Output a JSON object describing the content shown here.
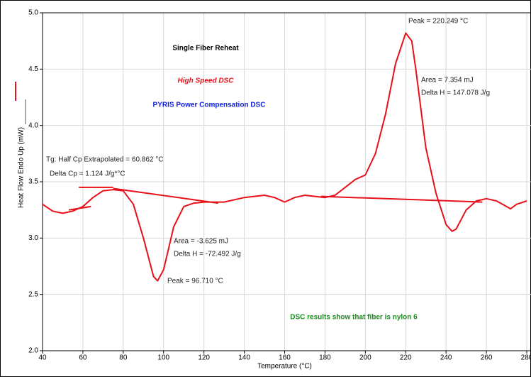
{
  "chart_data": {
    "type": "line",
    "title": "Single Fiber Reheat",
    "x_label": "Temperature (°C)",
    "y_label": "Heat Flow Endo Up (mW)",
    "xlim": [
      40,
      280
    ],
    "ylim": [
      2.0,
      5.0
    ],
    "xticks": [
      40,
      60,
      80,
      100,
      120,
      140,
      160,
      180,
      200,
      220,
      240,
      260,
      280
    ],
    "yticks": [
      {
        "value": 2.0,
        "label": "2.0"
      },
      {
        "value": 2.5,
        "label": "2.5"
      },
      {
        "value": 3.0,
        "label": "3.0"
      },
      {
        "value": 3.5,
        "label": "3.5"
      },
      {
        "value": 4.0,
        "label": "4.0"
      },
      {
        "value": 4.5,
        "label": "4.5"
      },
      {
        "value": 5.0,
        "label": "5.0"
      }
    ],
    "grid": true,
    "series": [
      {
        "color": "#e8101a",
        "x": [
          40,
          45,
          50,
          55,
          60,
          65,
          70,
          75,
          80,
          85,
          90,
          95,
          97,
          100,
          105,
          110,
          115,
          120,
          130,
          140,
          150,
          155,
          160,
          165,
          170,
          175,
          180,
          185,
          190,
          195,
          200,
          205,
          210,
          215,
          220,
          223,
          225,
          230,
          235,
          240,
          243,
          245,
          250,
          255,
          260,
          265,
          270,
          272,
          275,
          280
        ],
        "values": [
          3.3,
          3.24,
          3.22,
          3.24,
          3.28,
          3.36,
          3.42,
          3.43,
          3.42,
          3.3,
          3.0,
          2.66,
          2.62,
          2.72,
          3.1,
          3.28,
          3.31,
          3.32,
          3.32,
          3.36,
          3.38,
          3.36,
          3.32,
          3.36,
          3.38,
          3.37,
          3.36,
          3.38,
          3.45,
          3.52,
          3.56,
          3.75,
          4.1,
          4.55,
          4.82,
          4.75,
          4.5,
          3.8,
          3.4,
          3.12,
          3.06,
          3.08,
          3.25,
          3.33,
          3.35,
          3.33,
          3.28,
          3.26,
          3.3,
          3.33
        ]
      },
      {
        "color": "#e8101a",
        "x": [
          58,
          75,
          null,
          53,
          64,
          null,
          75,
          127,
          null,
          178,
          258
        ],
        "values": [
          3.45,
          3.45,
          null,
          3.25,
          3.28,
          null,
          3.44,
          3.31,
          null,
          3.37,
          3.32
        ]
      }
    ],
    "annotations": [
      "Single Fiber Reheat",
      "High Speed DSC",
      "PYRIS Power Compensation DSC",
      "Peak = 220.249 °C",
      "Area = 7.354 mJ",
      "Delta H = 147.078 J/g",
      "Tg: Half Cp Extrapolated = 60.862 °C",
      "Delta Cp = 1.124 J/g*°C",
      "Area = -3.625 mJ",
      "Delta H = -72.492 J/g",
      "Peak = 96.710 °C",
      "DSC results show that fiber is nylon 6"
    ]
  }
}
